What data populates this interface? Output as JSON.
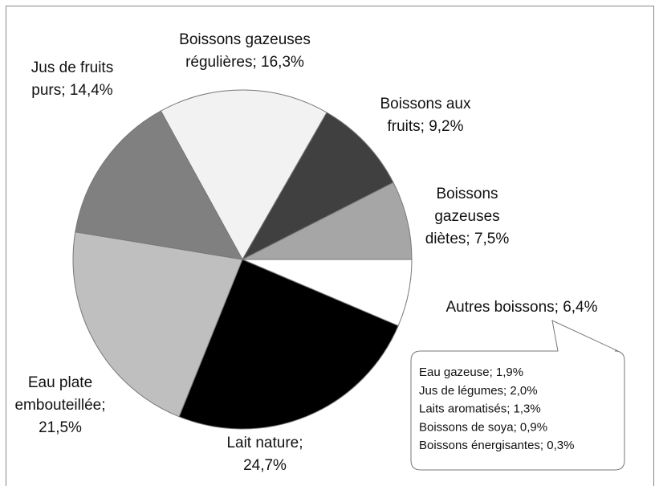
{
  "chart_data": {
    "type": "pie",
    "labels": [
      [
        "Boissons gazeuses",
        "régulières; 16,3%"
      ],
      [
        "Boissons aux",
        "fruits; 9,2%"
      ],
      [
        "Boissons",
        "gazeuses",
        "diètes; 7,5%"
      ],
      [
        "Autres boissons; 6,4%"
      ],
      [
        "Lait nature;",
        "24,7%"
      ],
      [
        "Eau plate",
        "embouteillée;",
        "21,5%"
      ],
      [
        "Jus de fruits",
        "purs; 14,4%"
      ]
    ],
    "values": [
      16.3,
      9.2,
      7.5,
      6.4,
      24.7,
      21.5,
      14.4
    ],
    "colors": [
      "#f2f2f2",
      "#404040",
      "#a6a6a6",
      "#ffffff",
      "#000000",
      "#bfbfbf",
      "#808080"
    ],
    "callout": [
      "Eau gazeuse; 1,9%",
      "Jus de légumes; 2,0%",
      "Laits aromatisés; 1,3%",
      "Boissons de soya; 0,9%",
      "Boissons énergisantes; 0,3%"
    ]
  }
}
